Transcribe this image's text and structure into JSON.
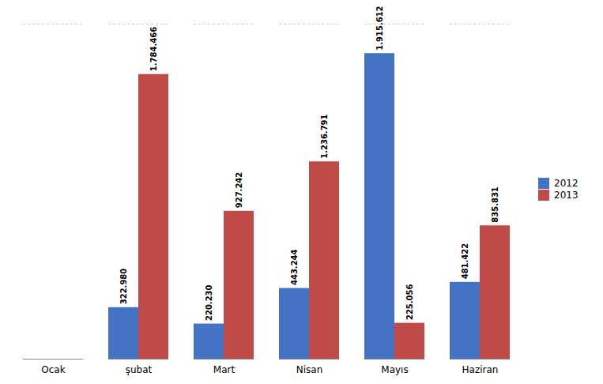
{
  "chart_data": {
    "type": "bar",
    "categories": [
      "Ocak",
      "şubat",
      "Mart",
      "Nisan",
      "Mayıs",
      "Haziran"
    ],
    "series": [
      {
        "name": "2012",
        "color": "#4472C4",
        "values": [
          0,
          322.98,
          220.23,
          443.244,
          1915.612,
          481.422
        ],
        "value_labels": [
          null,
          "322.980",
          "220.230",
          "443.244",
          "1.915.612",
          "481.422"
        ]
      },
      {
        "name": "2013",
        "color": "#BE4B48",
        "values": [
          0,
          1784.466,
          927.242,
          1236.791,
          225.056,
          835.831
        ],
        "value_labels": [
          null,
          "1.784.466",
          "927.242",
          "1.236.791",
          "225.056",
          "835.831"
        ]
      }
    ],
    "ylim": [
      0,
      2100
    ],
    "legend": "right",
    "tick_labels": "x",
    "grid": false
  }
}
